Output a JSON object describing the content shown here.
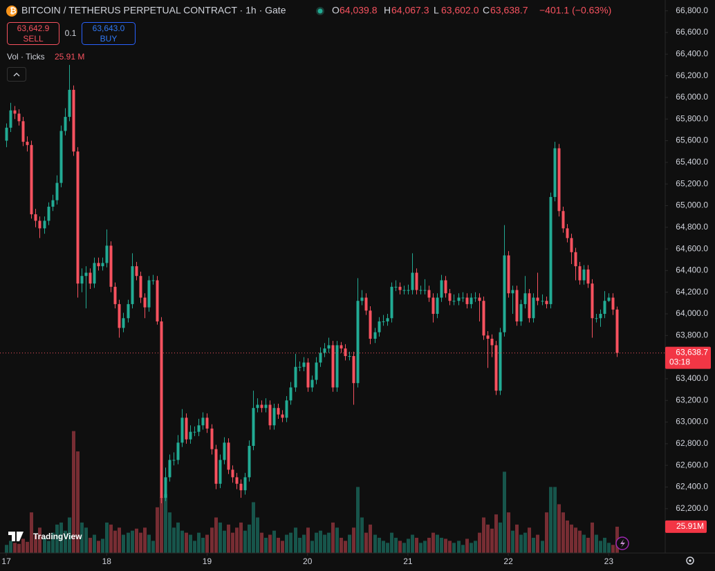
{
  "chart_data": {
    "type": "candlestick",
    "title": "BITCOIN / TETHERUS PERPETUAL CONTRACT · 1h · Gate",
    "ohlc_legend": [
      {
        "label": "O",
        "value": "64,039.8"
      },
      {
        "label": "H",
        "value": "64,067.3"
      },
      {
        "label": "L",
        "value": "63,602.0"
      },
      {
        "label": "C",
        "value": "63,638.7"
      }
    ],
    "change": "−401.1 (−0.63%)",
    "sell": {
      "price": "63,642.9",
      "label": "SELL"
    },
    "spread": "0.1",
    "buy": {
      "price": "63,643.0",
      "label": "BUY"
    },
    "volume_label": "Vol · Ticks",
    "volume_value": "25.91 M",
    "last_price_label": "63,638.7",
    "countdown": "03:18",
    "volume_tag": "25.91M",
    "watermark": "TradingView",
    "up_color": "#22ab94",
    "down_color": "#f7525f",
    "grid": false,
    "xlim": [
      -1.5,
      157.5
    ],
    "xticks": [
      {
        "value": 0,
        "label": "17"
      },
      {
        "value": 24,
        "label": "18"
      },
      {
        "value": 48,
        "label": "19"
      },
      {
        "value": 72,
        "label": "20"
      },
      {
        "value": 96,
        "label": "21"
      },
      {
        "value": 120,
        "label": "22"
      },
      {
        "value": 144,
        "label": "23"
      }
    ],
    "ylim": [
      61790,
      66900
    ],
    "yticks": [
      {
        "value": 66800,
        "label": "66,800.0"
      },
      {
        "value": 66600,
        "label": "66,600.0"
      },
      {
        "value": 66400,
        "label": "66,400.0"
      },
      {
        "value": 66200,
        "label": "66,200.0"
      },
      {
        "value": 66000,
        "label": "66,000.0"
      },
      {
        "value": 65800,
        "label": "65,800.0"
      },
      {
        "value": 65600,
        "label": "65,600.0"
      },
      {
        "value": 65400,
        "label": "65,400.0"
      },
      {
        "value": 65200,
        "label": "65,200.0"
      },
      {
        "value": 65000,
        "label": "65,000.0"
      },
      {
        "value": 64800,
        "label": "64,800.0"
      },
      {
        "value": 64600,
        "label": "64,600.0"
      },
      {
        "value": 64400,
        "label": "64,400.0"
      },
      {
        "value": 64200,
        "label": "64,200.0"
      },
      {
        "value": 64000,
        "label": "64,000.0"
      },
      {
        "value": 63800,
        "label": "63,800.0"
      },
      {
        "value": 63400,
        "label": "63,400.0"
      },
      {
        "value": 63200,
        "label": "63,200.0"
      },
      {
        "value": 63000,
        "label": "63,000.0"
      },
      {
        "value": 62800,
        "label": "62,800.0"
      },
      {
        "value": 62600,
        "label": "62,600.0"
      },
      {
        "value": 62400,
        "label": "62,400.0"
      },
      {
        "value": 62200,
        "label": "62,200.0"
      }
    ],
    "open": [
      65600,
      65720,
      65880,
      65850,
      65780,
      65590,
      65560,
      64920,
      64860,
      64790,
      64860,
      64990,
      65050,
      65210,
      65690,
      65820,
      66070,
      65500,
      64280,
      64350,
      64380,
      64280,
      64470,
      64440,
      64470,
      64630,
      64250,
      64090,
      63870,
      63960,
      64090,
      64440,
      64350,
      64150,
      64060,
      64310,
      64310,
      63930,
      62300,
      62490,
      62650,
      62650,
      62810,
      63040,
      62840,
      62910,
      62910,
      62970,
      63040,
      62940,
      62750,
      62430,
      62650,
      62810,
      62560,
      62490,
      62430,
      62370,
      62490,
      62780,
      63130,
      63160,
      63130,
      63160,
      62970,
      63130,
      63070,
      63040,
      63200,
      63320,
      63510,
      63510,
      63550,
      63320,
      63390,
      63550,
      63640,
      63680,
      63710,
      63320,
      63710,
      63680,
      63610,
      63610,
      63360,
      64120,
      64150,
      64030,
      63770,
      63830,
      63930,
      63930,
      63960,
      64250,
      64250,
      64220,
      64220,
      64220,
      64380,
      64220,
      64220,
      64220,
      64150,
      64000,
      64150,
      64310,
      64190,
      64120,
      64120,
      64150,
      64150,
      64090,
      64150,
      64150,
      64120,
      63800,
      63770,
      63710,
      63290,
      63830,
      64540,
      64190,
      64220,
      63930,
      64090,
      64190,
      63960,
      64150,
      64120,
      64120,
      64090,
      65080,
      65530,
      64950,
      64790,
      64700,
      64570,
      64440,
      64310,
      64410,
      64280,
      63960,
      63960,
      64000,
      64120,
      64150,
      64039.8
    ],
    "high": [
      65760,
      65950,
      65920,
      65890,
      65820,
      65640,
      65600,
      64970,
      64900,
      64900,
      65030,
      65100,
      65280,
      65740,
      65900,
      66300,
      66110,
      65540,
      64420,
      64440,
      64420,
      64520,
      64520,
      64520,
      64780,
      64670,
      64290,
      64130,
      64010,
      64130,
      64560,
      64480,
      64390,
      64190,
      64350,
      64360,
      64350,
      63970,
      62580,
      62700,
      62720,
      62880,
      63120,
      63080,
      62970,
      62960,
      63030,
      63090,
      63080,
      62980,
      62790,
      62700,
      62860,
      62850,
      62600,
      62530,
      62470,
      62530,
      62830,
      63290,
      63220,
      63200,
      63220,
      63200,
      63170,
      63170,
      63110,
      63240,
      63370,
      63630,
      63560,
      63600,
      63590,
      63430,
      63600,
      63690,
      63730,
      63780,
      63750,
      63750,
      63740,
      63720,
      63650,
      63650,
      64330,
      64220,
      64190,
      64070,
      63870,
      63970,
      63990,
      64000,
      64290,
      64310,
      64290,
      64260,
      64270,
      64560,
      64420,
      64260,
      64320,
      64260,
      64190,
      64190,
      64360,
      64350,
      64230,
      64180,
      64190,
      64200,
      64190,
      64190,
      64200,
      64190,
      64160,
      63840,
      63810,
      63750,
      63870,
      64820,
      64580,
      64260,
      64260,
      64130,
      64350,
      64230,
      64190,
      64380,
      64180,
      64160,
      65120,
      65590,
      65570,
      64990,
      64830,
      64740,
      64610,
      64480,
      64450,
      64450,
      64320,
      64000,
      64040,
      64210,
      64190,
      64190,
      64067.3
    ],
    "low": [
      65540,
      65680,
      65800,
      65740,
      65550,
      65500,
      64880,
      64800,
      64700,
      64740,
      64820,
      64950,
      65010,
      65170,
      65650,
      65780,
      65460,
      64150,
      64200,
      64050,
      64230,
      64240,
      64400,
      64400,
      64430,
      64200,
      64050,
      63780,
      63830,
      63920,
      64050,
      64310,
      64100,
      63960,
      64020,
      64270,
      63900,
      62250,
      62270,
      62450,
      62600,
      62610,
      62770,
      62800,
      62800,
      62870,
      62870,
      62930,
      62900,
      62700,
      62380,
      62390,
      62610,
      62520,
      62440,
      62380,
      62300,
      62330,
      62450,
      62740,
      63090,
      63090,
      63090,
      62930,
      62930,
      63030,
      63000,
      63000,
      63160,
      63280,
      63470,
      63470,
      63280,
      63280,
      63350,
      63510,
      63600,
      63640,
      63280,
      63280,
      63640,
      63570,
      63570,
      63160,
      63320,
      64080,
      63990,
      63720,
      63730,
      63790,
      63890,
      63890,
      63920,
      64210,
      64180,
      64180,
      64180,
      64180,
      64180,
      64180,
      64180,
      64110,
      63920,
      63960,
      64110,
      64150,
      64080,
      64080,
      64080,
      64110,
      64050,
      64050,
      64110,
      63930,
      63760,
      63500,
      63600,
      63250,
      63250,
      63790,
      64150,
      64000,
      63890,
      63890,
      64050,
      63920,
      63920,
      64080,
      64080,
      64050,
      64050,
      65040,
      64900,
      64750,
      64660,
      64460,
      64310,
      64270,
      64270,
      64240,
      63780,
      63920,
      63880,
      63960,
      64110,
      63990,
      63602
    ],
    "close": [
      65720,
      65880,
      65850,
      65780,
      65590,
      65560,
      64920,
      64860,
      64790,
      64860,
      64990,
      65050,
      65210,
      65690,
      65820,
      66070,
      65500,
      64280,
      64350,
      64380,
      64280,
      64470,
      64440,
      64470,
      64630,
      64250,
      64090,
      63870,
      63960,
      64090,
      64440,
      64350,
      64150,
      64060,
      64310,
      64310,
      63930,
      62300,
      62490,
      62650,
      62650,
      62810,
      63040,
      62840,
      62910,
      62910,
      62970,
      63040,
      62940,
      62750,
      62430,
      62650,
      62810,
      62560,
      62490,
      62430,
      62370,
      62490,
      62780,
      63130,
      63160,
      63130,
      63160,
      62970,
      63130,
      63070,
      63040,
      63200,
      63320,
      63510,
      63510,
      63550,
      63320,
      63390,
      63550,
      63640,
      63680,
      63710,
      63320,
      63710,
      63680,
      63610,
      63610,
      63360,
      64120,
      64150,
      64030,
      63770,
      63830,
      63930,
      63930,
      63960,
      64250,
      64250,
      64220,
      64220,
      64220,
      64380,
      64220,
      64220,
      64220,
      64150,
      64000,
      64150,
      64310,
      64190,
      64120,
      64120,
      64150,
      64150,
      64090,
      64150,
      64150,
      64120,
      63800,
      63770,
      63710,
      63290,
      63830,
      64540,
      64190,
      64220,
      63930,
      64090,
      64190,
      63960,
      64150,
      64120,
      64120,
      64090,
      65080,
      65530,
      64950,
      64790,
      64700,
      64570,
      64440,
      64310,
      64410,
      64280,
      63960,
      63960,
      64000,
      64120,
      64150,
      64039.8,
      63638.7
    ],
    "volume": [
      8,
      12,
      10,
      9,
      14,
      11,
      40,
      18,
      25,
      15,
      12,
      20,
      28,
      30,
      22,
      35,
      120,
      100,
      30,
      25,
      15,
      18,
      12,
      14,
      30,
      28,
      22,
      25,
      18,
      20,
      22,
      24,
      20,
      25,
      18,
      12,
      45,
      55,
      58,
      40,
      25,
      30,
      22,
      20,
      18,
      12,
      20,
      15,
      18,
      25,
      35,
      30,
      22,
      28,
      20,
      25,
      30,
      22,
      28,
      50,
      35,
      20,
      15,
      18,
      22,
      15,
      12,
      18,
      20,
      25,
      15,
      18,
      25,
      12,
      20,
      22,
      18,
      20,
      30,
      25,
      15,
      12,
      18,
      25,
      65,
      35,
      20,
      28,
      18,
      15,
      12,
      10,
      20,
      15,
      12,
      10,
      14,
      18,
      15,
      10,
      12,
      15,
      20,
      18,
      15,
      14,
      12,
      10,
      12,
      8,
      14,
      10,
      12,
      20,
      35,
      28,
      24,
      38,
      30,
      80,
      40,
      22,
      28,
      18,
      20,
      25,
      15,
      18,
      12,
      40,
      65,
      65,
      48,
      40,
      32,
      28,
      25,
      22,
      18,
      15,
      30,
      18,
      12,
      15,
      10,
      8,
      25.91
    ]
  }
}
